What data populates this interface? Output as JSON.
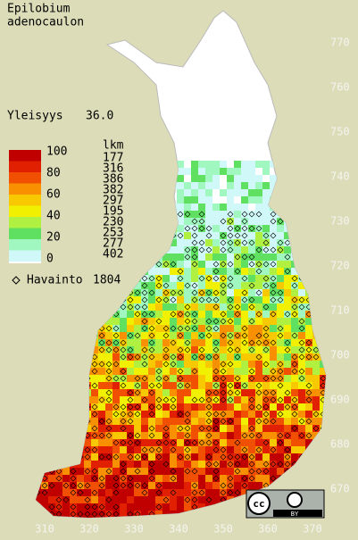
{
  "title": [
    "Epilobium",
    "adenocaulon"
  ],
  "frequency": {
    "label": "Yleisyys",
    "value": "36.0"
  },
  "legend": {
    "scale_labels": [
      100,
      80,
      60,
      40,
      20,
      0
    ],
    "count_header": "lkm",
    "counts": [
      177,
      316,
      386,
      382,
      297,
      195,
      230,
      253,
      277,
      402
    ],
    "colors": [
      "#c00000",
      "#e02000",
      "#f05000",
      "#f89000",
      "#f8c800",
      "#f0f000",
      "#b0f040",
      "#60e060",
      "#a0f8c0",
      "#d0f8f8"
    ]
  },
  "observations": {
    "label": "Havainto",
    "count": 1804
  },
  "grid": {
    "north": [
      770,
      760,
      750,
      740,
      730,
      720,
      710,
      700,
      690,
      680,
      670
    ],
    "east": [
      310,
      320,
      330,
      340,
      350,
      360,
      370
    ]
  },
  "license": {
    "icon": "cc",
    "badge": "BY"
  }
}
